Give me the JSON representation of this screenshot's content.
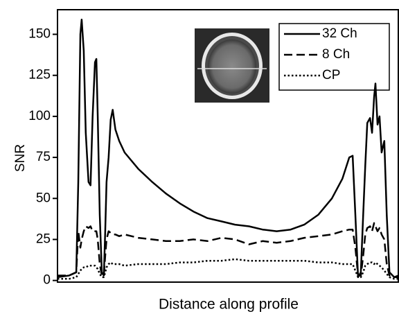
{
  "chart_data": {
    "type": "line",
    "y_label": "SNR",
    "x_label": "Distance along profile",
    "xlim": [
      0,
      100
    ],
    "ylim": [
      -1,
      165
    ],
    "yticks": [
      0,
      25,
      50,
      75,
      100,
      125,
      150
    ],
    "legend": "upper right",
    "x": [
      0,
      3.4,
      5.5,
      6.1,
      6.7,
      7.1,
      7.7,
      8.3,
      9.1,
      9.7,
      10.3,
      11.0,
      11.4,
      11.8,
      12.4,
      13.0,
      13.6,
      14.0,
      14.4,
      15.0,
      15.6,
      16.2,
      17.0,
      18.1,
      19.7,
      23.7,
      27.8,
      31.8,
      35.9,
      39.9,
      44.0,
      48.1,
      52.1,
      56.2,
      60.2,
      64.3,
      68.4,
      72.4,
      76.5,
      80.5,
      83.6,
      85.6,
      86.6,
      87.4,
      88.2,
      89.0,
      89.7,
      90.3,
      90.9,
      91.7,
      92.3,
      92.9,
      93.3,
      93.9,
      94.5,
      95.1,
      95.9,
      96.6,
      97.4,
      98.8,
      100
    ],
    "series": [
      {
        "name": "32 Ch",
        "color": "#000000",
        "dash": "solid",
        "values": [
          2,
          3,
          5,
          60,
          150,
          159,
          140,
          90,
          60,
          58,
          100,
          133,
          135,
          100,
          40,
          5,
          3,
          30,
          60,
          75,
          98,
          104,
          92,
          85,
          78,
          68,
          60,
          53,
          47,
          42,
          38,
          36,
          34,
          33,
          31,
          30,
          31,
          34,
          40,
          50,
          62,
          75,
          76,
          40,
          2,
          5,
          40,
          70,
          96,
          99,
          90,
          112,
          120,
          95,
          100,
          78,
          85,
          40,
          5,
          2,
          3
        ]
      },
      {
        "name": "8 Ch",
        "color": "#000000",
        "dash": "dashed",
        "values": [
          3,
          3,
          5,
          30,
          20,
          25,
          30,
          33,
          32,
          33,
          30,
          30,
          30,
          25,
          10,
          3,
          3,
          15,
          25,
          30,
          29,
          28,
          28,
          27,
          28,
          26,
          25,
          24,
          24,
          25,
          24,
          26,
          25,
          22,
          24,
          23,
          24,
          26,
          27,
          28,
          30,
          31,
          31,
          20,
          3,
          3,
          15,
          28,
          32,
          33,
          30,
          35,
          33,
          30,
          32,
          28,
          25,
          10,
          3,
          2,
          2
        ]
      },
      {
        "name": "CP",
        "color": "#000000",
        "dash": "dotted",
        "values": [
          1,
          1,
          2,
          4,
          6,
          7,
          8,
          8,
          9,
          9,
          9,
          9,
          8,
          7,
          4,
          2,
          2,
          5,
          8,
          10,
          11,
          10,
          10,
          10,
          9,
          10,
          10,
          10,
          11,
          11,
          12,
          12,
          13,
          12,
          12,
          12,
          12,
          12,
          11,
          11,
          10,
          10,
          10,
          6,
          2,
          2,
          5,
          9,
          10,
          11,
          11,
          10,
          11,
          10,
          9,
          8,
          6,
          4,
          2,
          1,
          1
        ]
      }
    ]
  }
}
